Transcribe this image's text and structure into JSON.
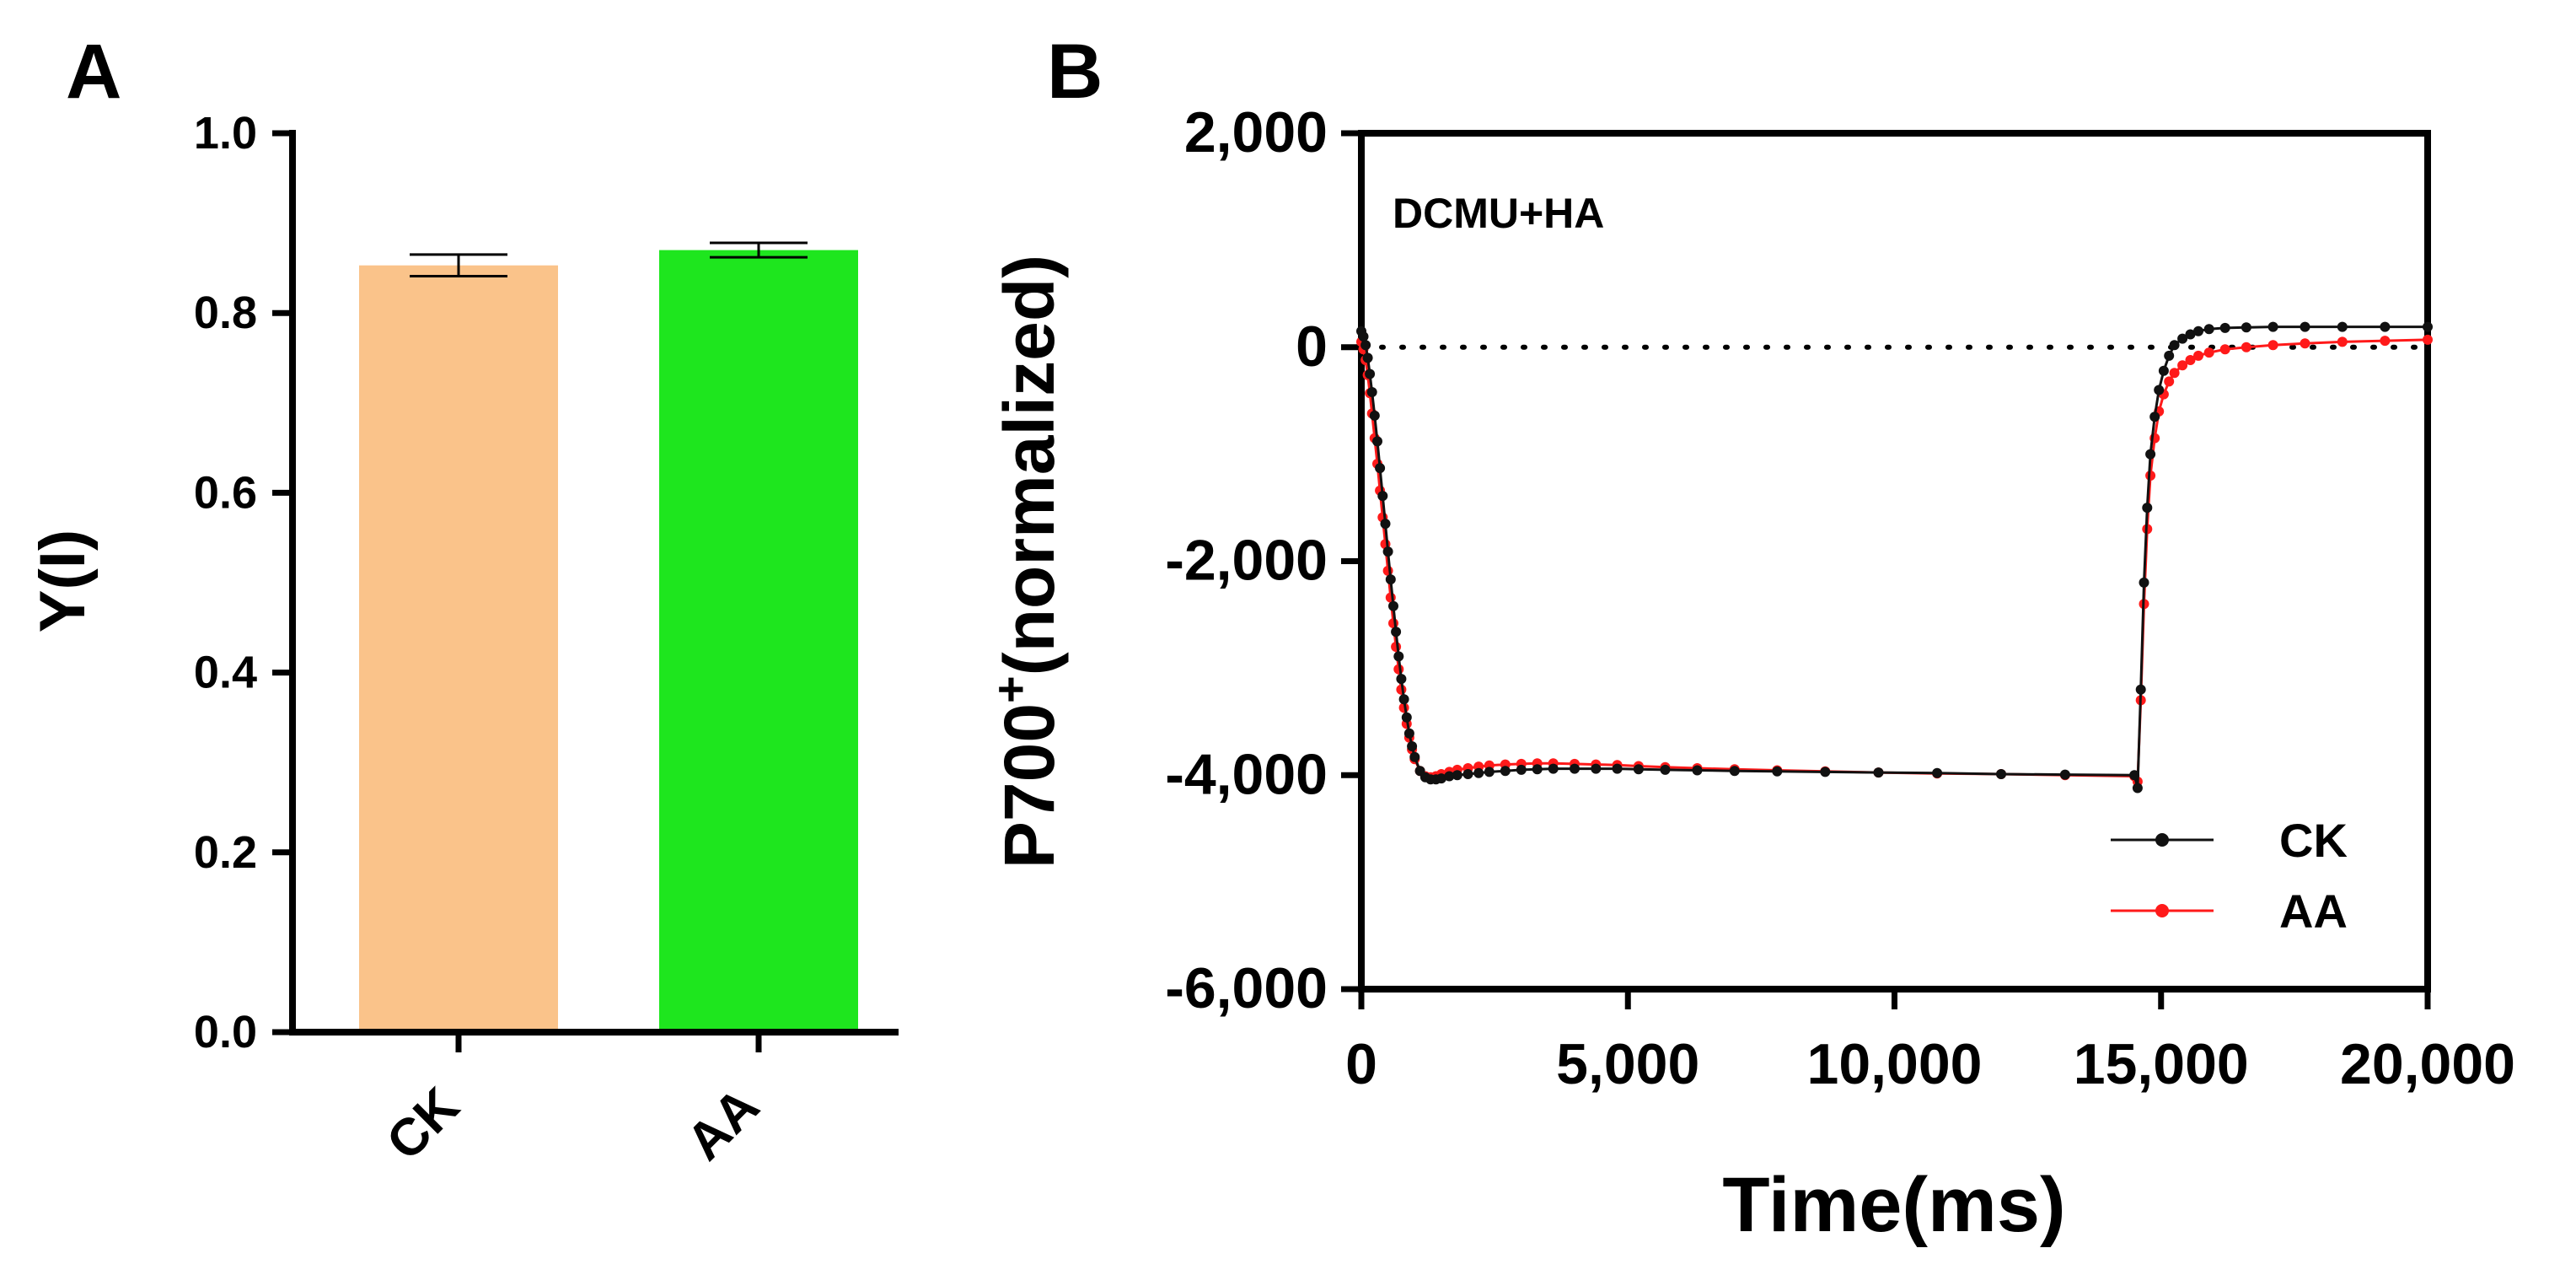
{
  "panels": {
    "a_label": "A",
    "b_label": "B"
  },
  "chart_data": [
    {
      "type": "bar",
      "panel": "A",
      "title": "",
      "xlabel": "",
      "ylabel": "Y(I)",
      "categories": [
        "CK",
        "AA"
      ],
      "values": [
        0.853,
        0.87
      ],
      "errors": [
        0.012,
        0.008
      ],
      "colors": [
        "#FAC38A",
        "#1EE61E"
      ],
      "ylim": [
        0.0,
        1.0
      ],
      "yticks": [
        "0.0",
        "0.2",
        "0.4",
        "0.6",
        "0.8",
        "1.0"
      ],
      "grid": false
    },
    {
      "type": "line",
      "panel": "B",
      "title": "",
      "annotation": "DCMU+HA",
      "xlabel": "Time(ms)",
      "ylabel_main": "P700",
      "ylabel_sup": "+",
      "ylabel_rest": "(normalized)",
      "xlim": [
        0,
        20000
      ],
      "ylim": [
        -6000,
        2000
      ],
      "xticks": [
        "0",
        "5,000",
        "10,000",
        "15,000",
        "20,000"
      ],
      "yticks": [
        "-6,000",
        "-4,000",
        "-2,000",
        "0",
        "2,000"
      ],
      "reference_line_y": 0,
      "legend_position": "bottom-right",
      "grid": false,
      "series": [
        {
          "name": "CK",
          "color": "#111111",
          "x": [
            0,
            40,
            80,
            120,
            160,
            200,
            250,
            300,
            350,
            400,
            450,
            500,
            550,
            600,
            650,
            700,
            750,
            800,
            850,
            900,
            950,
            1000,
            1100,
            1200,
            1300,
            1400,
            1500,
            1650,
            1800,
            2000,
            2200,
            2400,
            2700,
            3000,
            3300,
            3600,
            4000,
            4400,
            4800,
            5200,
            5700,
            6300,
            7000,
            7800,
            8700,
            9700,
            10800,
            12000,
            13200,
            14500,
            14560,
            14620,
            14680,
            14740,
            14800,
            14880,
            14960,
            15050,
            15150,
            15250,
            15400,
            15550,
            15700,
            15900,
            16200,
            16600,
            17100,
            17700,
            18400,
            19200,
            20000
          ],
          "y": [
            150,
            100,
            20,
            -100,
            -250,
            -420,
            -640,
            -880,
            -1130,
            -1390,
            -1650,
            -1910,
            -2170,
            -2420,
            -2660,
            -2890,
            -3100,
            -3290,
            -3460,
            -3610,
            -3730,
            -3830,
            -3960,
            -4020,
            -4040,
            -4040,
            -4030,
            -4010,
            -4000,
            -3990,
            -3980,
            -3970,
            -3960,
            -3950,
            -3945,
            -3940,
            -3940,
            -3940,
            -3940,
            -3945,
            -3950,
            -3955,
            -3960,
            -3965,
            -3970,
            -3975,
            -3980,
            -3990,
            -3995,
            -4000,
            -4120,
            -3200,
            -2200,
            -1500,
            -1000,
            -650,
            -400,
            -220,
            -80,
            20,
            80,
            120,
            150,
            170,
            180,
            185,
            190,
            190,
            190,
            190,
            190
          ]
        },
        {
          "name": "AA",
          "color": "#FF1A1A",
          "x": [
            0,
            40,
            80,
            120,
            160,
            200,
            250,
            300,
            350,
            400,
            450,
            500,
            550,
            600,
            650,
            700,
            750,
            800,
            850,
            900,
            950,
            1000,
            1100,
            1200,
            1300,
            1400,
            1500,
            1650,
            1800,
            2000,
            2200,
            2400,
            2700,
            3000,
            3300,
            3600,
            4000,
            4400,
            4800,
            5200,
            5700,
            6300,
            7000,
            7800,
            8700,
            9700,
            10800,
            12000,
            13200,
            14500,
            14560,
            14620,
            14680,
            14740,
            14800,
            14880,
            14960,
            15050,
            15150,
            15250,
            15400,
            15550,
            15700,
            15900,
            16200,
            16600,
            17100,
            17700,
            18400,
            19200,
            20000
          ],
          "y": [
            50,
            -20,
            -120,
            -260,
            -430,
            -620,
            -850,
            -1090,
            -1340,
            -1590,
            -1840,
            -2090,
            -2340,
            -2580,
            -2800,
            -3010,
            -3200,
            -3370,
            -3520,
            -3650,
            -3760,
            -3850,
            -3960,
            -4010,
            -4020,
            -4010,
            -3990,
            -3970,
            -3950,
            -3935,
            -3920,
            -3910,
            -3900,
            -3895,
            -3890,
            -3890,
            -3895,
            -3900,
            -3905,
            -3915,
            -3925,
            -3935,
            -3945,
            -3955,
            -3965,
            -3975,
            -3985,
            -3990,
            -4000,
            -4010,
            -4060,
            -3300,
            -2400,
            -1700,
            -1200,
            -850,
            -600,
            -440,
            -320,
            -240,
            -170,
            -120,
            -80,
            -50,
            -20,
            0,
            20,
            35,
            50,
            60,
            70
          ]
        }
      ]
    }
  ]
}
